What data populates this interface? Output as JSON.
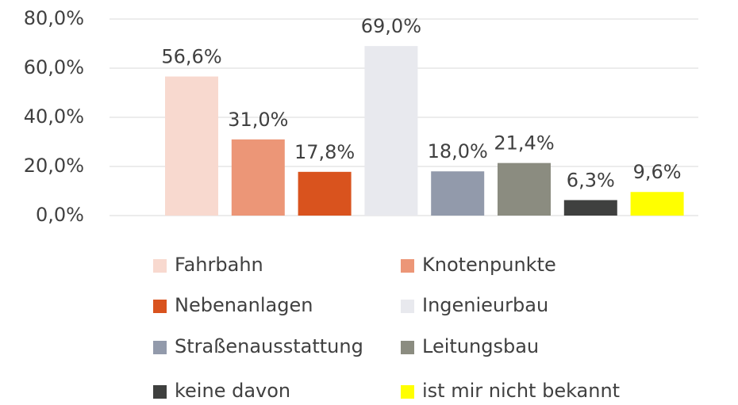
{
  "chart_data": {
    "type": "bar",
    "categories": [
      null
    ],
    "series": [
      {
        "name": "Fahrbahn",
        "color": "#f8d9cf",
        "values": [
          56.6
        ],
        "value_labels": [
          "56,6%"
        ]
      },
      {
        "name": "Knotenpunkte",
        "color": "#ec9677",
        "values": [
          31.0
        ],
        "value_labels": [
          "31,0%"
        ]
      },
      {
        "name": "Nebenanlagen",
        "color": "#d9531e",
        "values": [
          17.8
        ],
        "value_labels": [
          "17,8%"
        ]
      },
      {
        "name": "Ingenieurbau",
        "color": "#e8e9ee",
        "values": [
          69.0
        ],
        "value_labels": [
          "69,0%"
        ]
      },
      {
        "name": "Straßenausstattung",
        "color": "#929aab",
        "values": [
          18.0
        ],
        "value_labels": [
          "18,0%"
        ]
      },
      {
        "name": "Leitungsbau",
        "color": "#8b8c80",
        "values": [
          21.4
        ],
        "value_labels": [
          "21,4%"
        ]
      },
      {
        "name": "keine davon",
        "color": "#3f403f",
        "values": [
          6.3
        ],
        "value_labels": [
          "6,3%"
        ]
      },
      {
        "name": "ist mir nicht bekannt",
        "color": "#ffff00",
        "values": [
          9.6
        ],
        "value_labels": [
          "9,6%"
        ]
      }
    ],
    "ylim": [
      0,
      80
    ],
    "yticks": [
      {
        "value": 0,
        "label": "0,0%"
      },
      {
        "value": 20,
        "label": "20,0%"
      },
      {
        "value": 40,
        "label": "40,0%"
      },
      {
        "value": 60,
        "label": "60,0%"
      },
      {
        "value": 80,
        "label": "80,0%"
      }
    ],
    "grid": true,
    "legend": "bottom"
  }
}
